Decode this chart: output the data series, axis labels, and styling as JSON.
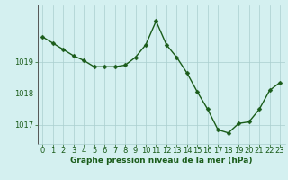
{
  "hours": [
    0,
    1,
    2,
    3,
    4,
    5,
    6,
    7,
    8,
    9,
    10,
    11,
    12,
    13,
    14,
    15,
    16,
    17,
    18,
    19,
    20,
    21,
    22,
    23
  ],
  "pressure": [
    1019.8,
    1019.6,
    1019.4,
    1019.2,
    1019.05,
    1018.85,
    1018.85,
    1018.85,
    1018.9,
    1019.15,
    1019.55,
    1020.3,
    1019.55,
    1019.15,
    1018.65,
    1018.05,
    1017.5,
    1016.85,
    1016.75,
    1017.05,
    1017.1,
    1017.5,
    1018.1,
    1018.35
  ],
  "line_color": "#1a5c1a",
  "marker_color": "#1a5c1a",
  "bg_color": "#d4f0f0",
  "grid_color": "#aacece",
  "outer_bg": "#d4f0f0",
  "xlabel": "Graphe pression niveau de la mer (hPa)",
  "yticks": [
    1017,
    1018,
    1019
  ],
  "xticks": [
    0,
    1,
    2,
    3,
    4,
    5,
    6,
    7,
    8,
    9,
    10,
    11,
    12,
    13,
    14,
    15,
    16,
    17,
    18,
    19,
    20,
    21,
    22,
    23
  ],
  "ylim": [
    1016.4,
    1020.8
  ],
  "xlim": [
    -0.5,
    23.5
  ],
  "font_color": "#1a5c1a",
  "label_fontsize": 6.5,
  "tick_fontsize": 6,
  "line_width": 1.0,
  "marker_size": 2.5
}
